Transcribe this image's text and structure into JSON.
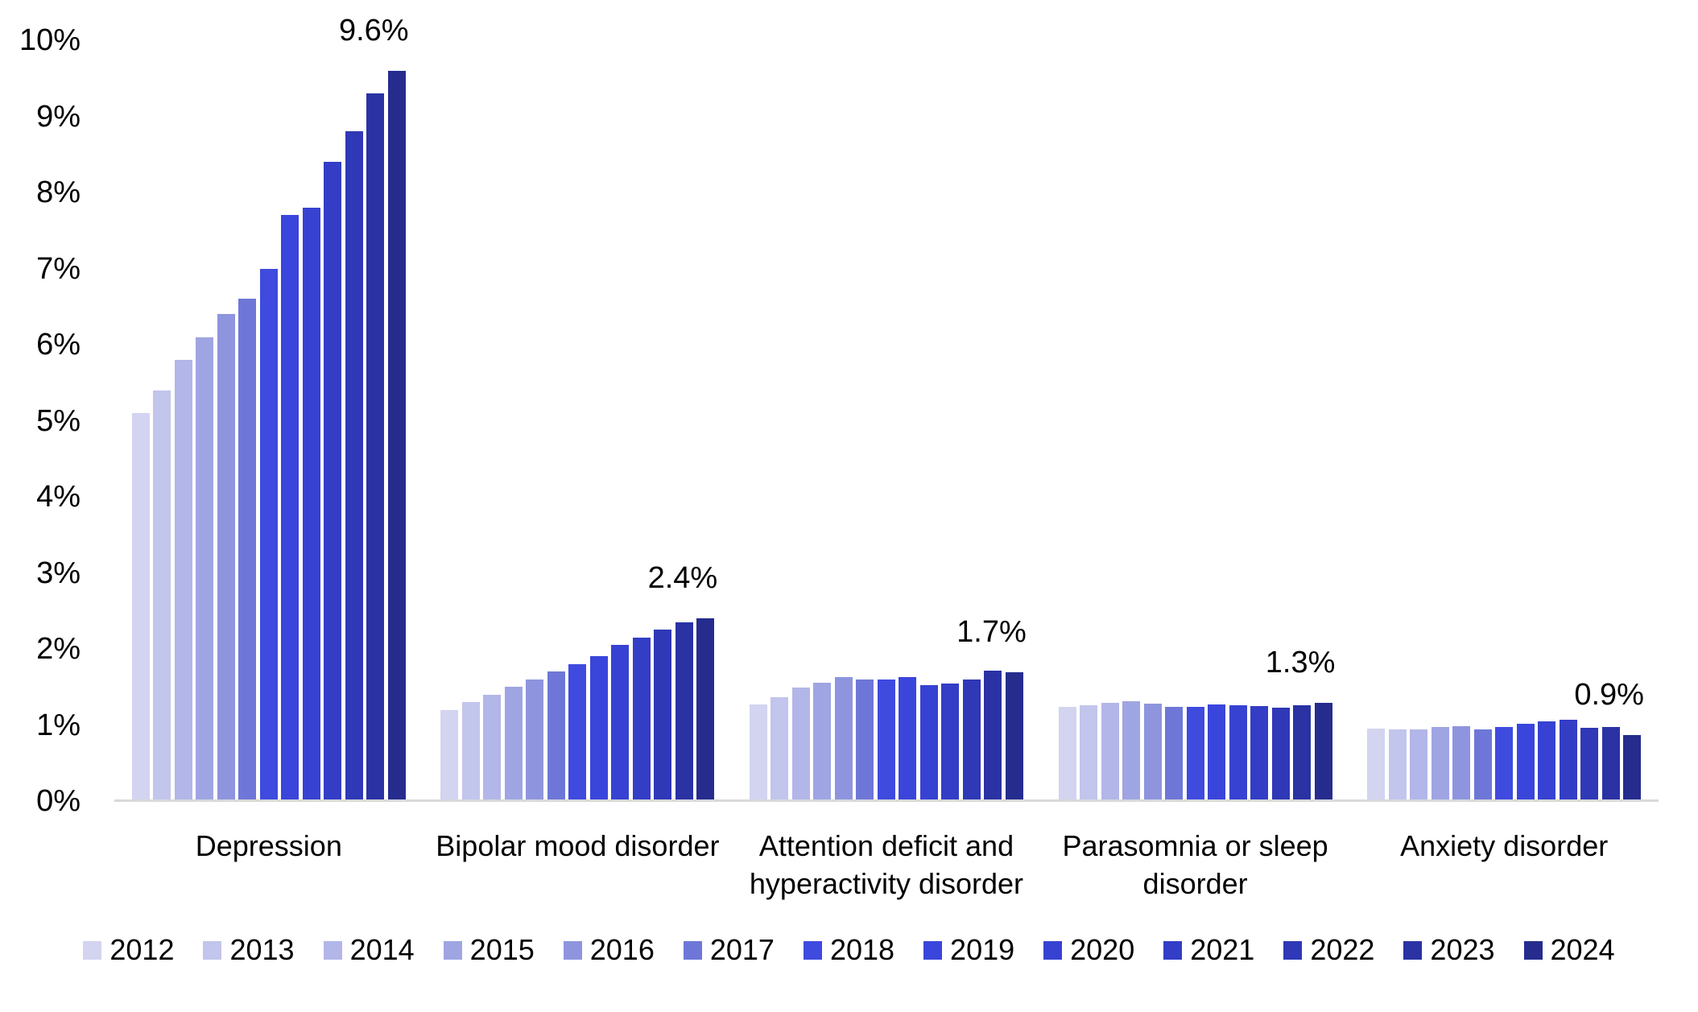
{
  "chart_data": {
    "type": "bar",
    "title": "",
    "xlabel": "",
    "ylabel": "",
    "categories": [
      "Depression",
      "Bipolar mood disorder",
      "Attention deficit and hyperactivity disorder",
      "Parasomnia or sleep disorder",
      "Anxiety disorder"
    ],
    "series": [
      {
        "name": "2012",
        "color": "#D2D4F0",
        "values": [
          5.1,
          1.2,
          1.27,
          1.24,
          0.95
        ]
      },
      {
        "name": "2013",
        "color": "#C2C5EC",
        "values": [
          5.4,
          1.3,
          1.37,
          1.26,
          0.94
        ]
      },
      {
        "name": "2014",
        "color": "#B2B6E8",
        "values": [
          5.8,
          1.4,
          1.49,
          1.29,
          0.94
        ]
      },
      {
        "name": "2015",
        "color": "#9FA5E2",
        "values": [
          6.1,
          1.5,
          1.56,
          1.31,
          0.97
        ]
      },
      {
        "name": "2016",
        "color": "#8E95DE",
        "values": [
          6.4,
          1.6,
          1.63,
          1.28,
          0.98
        ]
      },
      {
        "name": "2017",
        "color": "#6E77D7",
        "values": [
          6.6,
          1.7,
          1.6,
          1.24,
          0.94
        ]
      },
      {
        "name": "2018",
        "color": "#3F4ADF",
        "values": [
          7.0,
          1.8,
          1.6,
          1.24,
          0.97
        ]
      },
      {
        "name": "2019",
        "color": "#3A45DB",
        "values": [
          7.7,
          1.9,
          1.63,
          1.27,
          1.02
        ]
      },
      {
        "name": "2020",
        "color": "#3742D2",
        "values": [
          7.8,
          2.05,
          1.52,
          1.26,
          1.05
        ]
      },
      {
        "name": "2021",
        "color": "#333DC6",
        "values": [
          8.4,
          2.15,
          1.55,
          1.25,
          1.07
        ]
      },
      {
        "name": "2022",
        "color": "#2F38B6",
        "values": [
          8.8,
          2.25,
          1.6,
          1.23,
          0.96
        ]
      },
      {
        "name": "2023",
        "color": "#2A32A4",
        "values": [
          9.3,
          2.35,
          1.71,
          1.26,
          0.97
        ]
      },
      {
        "name": "2024",
        "color": "#252C8E",
        "values": [
          9.6,
          2.4,
          1.69,
          1.29,
          0.87
        ]
      }
    ],
    "annotations": [
      {
        "category_index": 0,
        "text": "9.6%"
      },
      {
        "category_index": 1,
        "text": "2.4%"
      },
      {
        "category_index": 2,
        "text": "1.7%"
      },
      {
        "category_index": 3,
        "text": "1.3%"
      },
      {
        "category_index": 4,
        "text": "0.9%"
      }
    ],
    "ylim": [
      0,
      10
    ],
    "ytick_step": 1,
    "ytick_labels": [
      "0%",
      "1%",
      "2%",
      "3%",
      "4%",
      "5%",
      "6%",
      "7%",
      "8%",
      "9%",
      "10%"
    ],
    "grid": false,
    "legend_position": "bottom",
    "axis_line_color": "#D9D9D9",
    "text_color": "#000000"
  }
}
